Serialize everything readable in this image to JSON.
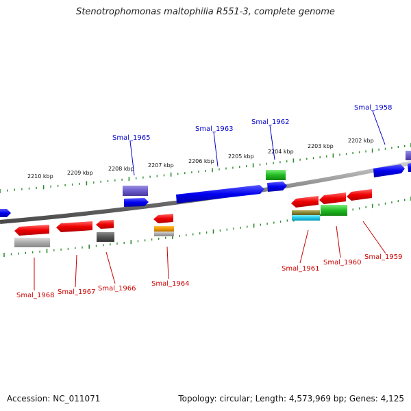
{
  "title": "Stenotrophomonas maltophilia R551-3, complete genome",
  "footer": {
    "accession": "Accession: NC_011071",
    "summary": "Topology: circular; Length: 4,573,969 bp; Genes: 4,125"
  },
  "scale_labels": [
    {
      "text": "2210 kbp",
      "pos": 2210
    },
    {
      "text": "2209 kbp",
      "pos": 2209
    },
    {
      "text": "2208 kbp",
      "pos": 2208
    },
    {
      "text": "2207 kbp",
      "pos": 2207
    },
    {
      "text": "2206 kbp",
      "pos": 2206
    },
    {
      "text": "2205 kbp",
      "pos": 2205
    },
    {
      "text": "2204 kbp",
      "pos": 2204
    },
    {
      "text": "2203 kbp",
      "pos": 2203
    },
    {
      "text": "2202 kbp",
      "pos": 2202
    }
  ],
  "colors": {
    "forward": "#0000ee",
    "reverse": "#ee0000",
    "backbone": "#8a8a8a",
    "tick": "#2a8a2a"
  },
  "gene_labels": [
    {
      "name": "Smal_1958",
      "strand": "forward"
    },
    {
      "name": "Smal_1962",
      "strand": "forward"
    },
    {
      "name": "Smal_1963",
      "strand": "forward"
    },
    {
      "name": "Smal_1965",
      "strand": "forward"
    },
    {
      "name": "Smal_1959",
      "strand": "reverse"
    },
    {
      "name": "Smal_1960",
      "strand": "reverse"
    },
    {
      "name": "Smal_1961",
      "strand": "reverse"
    },
    {
      "name": "Smal_1964",
      "strand": "reverse"
    },
    {
      "name": "Smal_1966",
      "strand": "reverse"
    },
    {
      "name": "Smal_1967",
      "strand": "reverse"
    },
    {
      "name": "Smal_1968",
      "strand": "reverse"
    }
  ]
}
